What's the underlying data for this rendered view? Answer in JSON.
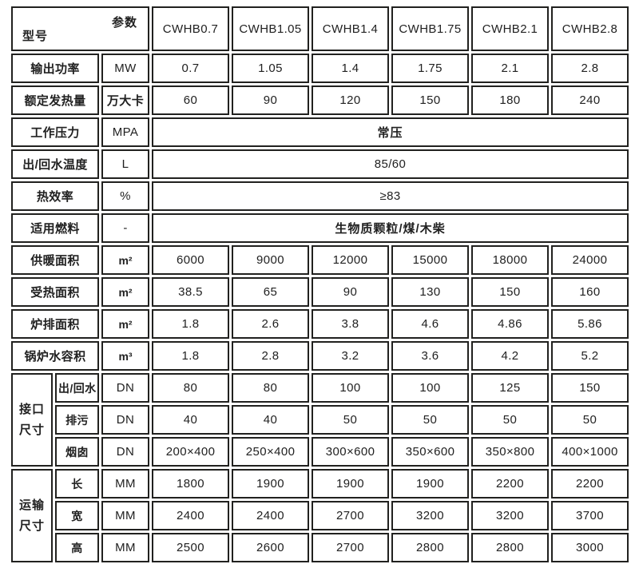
{
  "colors": {
    "border": "#21211f",
    "header_background": "#f2f2f0",
    "cell_background": "#ffffff",
    "text": "#212121"
  },
  "table": {
    "corner": {
      "param": "参数",
      "model": "型号"
    },
    "models": [
      "CWHB0.7",
      "CWHB1.05",
      "CWHB1.4",
      "CWHB1.75",
      "CWHB2.1",
      "CWHB2.8"
    ],
    "rows": [
      {
        "label": "输出功率",
        "unit": "MW",
        "values": [
          "0.7",
          "1.05",
          "1.4",
          "1.75",
          "2.1",
          "2.8"
        ]
      },
      {
        "label": "额定发热量",
        "unit": "万大卡",
        "values": [
          "60",
          "90",
          "120",
          "150",
          "180",
          "240"
        ]
      },
      {
        "label": "工作压力",
        "unit": "MPA",
        "merged": "常压"
      },
      {
        "label": "出/回水温度",
        "unit": "L",
        "merged": "85/60"
      },
      {
        "label": "热效率",
        "unit": "%",
        "merged": "≥83"
      },
      {
        "label": "适用燃料",
        "unit": "-",
        "merged": "生物质颗粒/煤/木柴"
      },
      {
        "label": "供暖面积",
        "unit": "m²",
        "values": [
          "6000",
          "9000",
          "12000",
          "15000",
          "18000",
          "24000"
        ]
      },
      {
        "label": "受热面积",
        "unit": "m²",
        "values": [
          "38.5",
          "65",
          "90",
          "130",
          "150",
          "160"
        ]
      },
      {
        "label": "炉排面积",
        "unit": "m²",
        "values": [
          "1.8",
          "2.6",
          "3.8",
          "4.6",
          "4.86",
          "5.86"
        ]
      },
      {
        "label": "锅炉水容积",
        "unit": "m³",
        "values": [
          "1.8",
          "2.8",
          "3.2",
          "3.6",
          "4.2",
          "5.2"
        ]
      }
    ],
    "groups": [
      {
        "label": "接口尺寸",
        "rows": [
          {
            "label": "出/回水",
            "unit": "DN",
            "values": [
              "80",
              "80",
              "100",
              "100",
              "125",
              "150"
            ]
          },
          {
            "label": "排污",
            "unit": "DN",
            "values": [
              "40",
              "40",
              "50",
              "50",
              "50",
              "50"
            ]
          },
          {
            "label": "烟囱",
            "unit": "DN",
            "values": [
              "200×400",
              "250×400",
              "300×600",
              "350×600",
              "350×800",
              "400×1000"
            ]
          }
        ]
      },
      {
        "label": "运输尺寸",
        "rows": [
          {
            "label": "长",
            "unit": "MM",
            "values": [
              "1800",
              "1900",
              "1900",
              "1900",
              "2200",
              "2200"
            ]
          },
          {
            "label": "宽",
            "unit": "MM",
            "values": [
              "2400",
              "2400",
              "2700",
              "3200",
              "3200",
              "3700"
            ]
          },
          {
            "label": "高",
            "unit": "MM",
            "values": [
              "2500",
              "2600",
              "2700",
              "2800",
              "2800",
              "3000"
            ]
          }
        ]
      }
    ]
  }
}
